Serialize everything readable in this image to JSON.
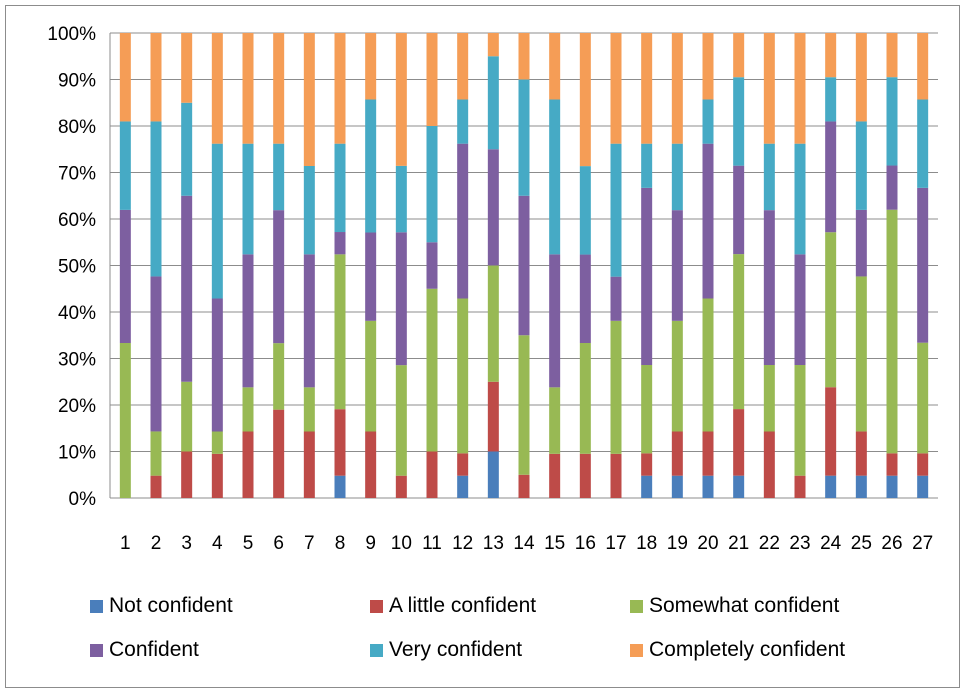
{
  "chart_data": {
    "type": "bar",
    "stacked": true,
    "normalized": true,
    "categories": [
      "1",
      "2",
      "3",
      "4",
      "5",
      "6",
      "7",
      "8",
      "9",
      "10",
      "11",
      "12",
      "13",
      "14",
      "15",
      "16",
      "17",
      "18",
      "19",
      "20",
      "21",
      "22",
      "23",
      "24",
      "25",
      "26",
      "27"
    ],
    "y_ticks": [
      "0%",
      "10%",
      "20%",
      "30%",
      "40%",
      "50%",
      "60%",
      "70%",
      "80%",
      "90%",
      "100%"
    ],
    "ylim": [
      0,
      100
    ],
    "grid": true,
    "legend_position": "bottom",
    "series": [
      {
        "name": "Not confident",
        "color": "#4a7ebb",
        "values": [
          0,
          0,
          0,
          0,
          0,
          0,
          0,
          4.8,
          0,
          0,
          0,
          4.8,
          10,
          0,
          0,
          0,
          0,
          4.8,
          4.8,
          4.8,
          4.8,
          0,
          0,
          4.8,
          4.8,
          4.8,
          4.8
        ]
      },
      {
        "name": "A little confident",
        "color": "#be4b48",
        "values": [
          0,
          4.8,
          10,
          9.5,
          14.3,
          19,
          14.3,
          14.3,
          14.3,
          4.8,
          10,
          4.8,
          15,
          5,
          9.5,
          9.5,
          9.5,
          4.8,
          9.5,
          9.5,
          14.3,
          14.3,
          4.8,
          19,
          9.5,
          4.8,
          4.8
        ]
      },
      {
        "name": "Somewhat confident",
        "color": "#98b954",
        "values": [
          33.3,
          9.5,
          15,
          4.8,
          9.5,
          14.3,
          9.5,
          33.3,
          23.8,
          23.8,
          35,
          33.3,
          25,
          30,
          14.3,
          23.8,
          28.6,
          19,
          23.8,
          28.6,
          33.3,
          14.3,
          23.8,
          33.3,
          33.3,
          52.4,
          23.8
        ]
      },
      {
        "name": "Confident",
        "color": "#7d5fa0",
        "values": [
          28.6,
          33.3,
          40,
          28.6,
          28.6,
          28.6,
          28.6,
          4.8,
          19,
          28.6,
          10,
          33.3,
          25,
          30,
          28.6,
          19,
          9.5,
          38.1,
          23.8,
          33.3,
          19,
          33.3,
          23.8,
          23.8,
          14.3,
          9.5,
          33.3
        ]
      },
      {
        "name": "Very confident",
        "color": "#46aac5",
        "values": [
          19,
          33.3,
          20,
          33.3,
          23.8,
          14.3,
          19,
          19,
          28.6,
          14.3,
          25,
          9.5,
          20,
          25,
          33.3,
          19,
          28.6,
          9.5,
          14.3,
          9.5,
          19,
          14.3,
          23.8,
          9.5,
          19,
          19,
          19
        ]
      },
      {
        "name": "Completely confident",
        "color": "#f59d56",
        "values": [
          19,
          19,
          15,
          23.8,
          23.8,
          23.8,
          28.6,
          23.8,
          14.3,
          28.6,
          20,
          14.3,
          5,
          10,
          14.3,
          28.6,
          23.8,
          23.8,
          23.8,
          14.3,
          9.5,
          23.8,
          23.8,
          9.5,
          19,
          9.5,
          14.3
        ]
      }
    ]
  }
}
